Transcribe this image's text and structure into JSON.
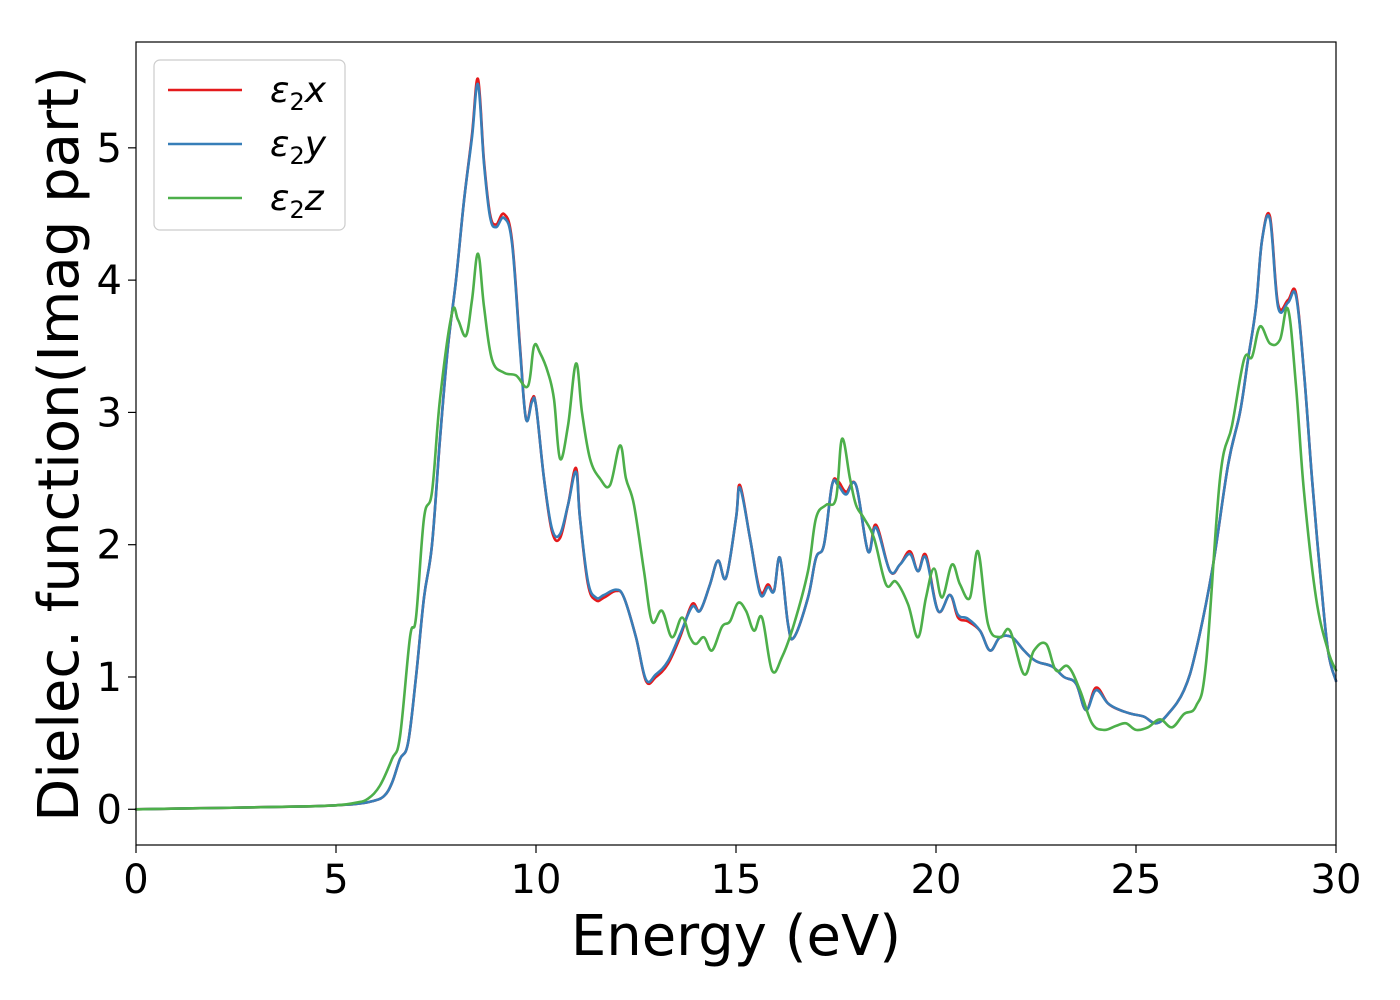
{
  "chart_data": {
    "type": "line",
    "title": "",
    "xlabel": "Energy (eV)",
    "ylabel": "Dielec. function(Imag part)",
    "xlim": [
      0,
      30
    ],
    "ylim": [
      -0.27,
      5.8
    ],
    "xticks": [
      0,
      5,
      10,
      15,
      20,
      25,
      30
    ],
    "yticks": [
      0,
      1,
      2,
      3,
      4,
      5
    ],
    "grid": false,
    "legend_position": "top-left",
    "series": [
      {
        "name": "ε2x",
        "legend": {
          "base": "ε",
          "sub": "2",
          "suffix": "x"
        },
        "color": "#e41a1c",
        "x": [
          0,
          2,
          4,
          5,
          5.5,
          5.9,
          6.2,
          6.4,
          6.6,
          6.8,
          7.0,
          7.2,
          7.4,
          7.6,
          7.8,
          8.0,
          8.2,
          8.4,
          8.55,
          8.7,
          8.85,
          9.0,
          9.2,
          9.4,
          9.6,
          9.75,
          9.9,
          10.0,
          10.2,
          10.4,
          10.6,
          10.8,
          11.0,
          11.1,
          11.3,
          11.5,
          11.7,
          12.0,
          12.2,
          12.5,
          12.75,
          13.0,
          13.3,
          13.6,
          13.9,
          14.1,
          14.35,
          14.55,
          14.75,
          15.0,
          15.1,
          15.35,
          15.6,
          15.8,
          15.95,
          16.1,
          16.3,
          16.45,
          16.8,
          17.0,
          17.2,
          17.4,
          17.55,
          17.75,
          18.0,
          18.3,
          18.5,
          18.85,
          19.1,
          19.35,
          19.55,
          19.75,
          20.05,
          20.35,
          20.55,
          20.8,
          21.1,
          21.35,
          21.6,
          21.9,
          22.2,
          22.5,
          22.9,
          23.2,
          23.5,
          23.75,
          24.0,
          24.3,
          24.6,
          24.9,
          25.2,
          25.5,
          25.8,
          26.2,
          26.5,
          26.9,
          27.3,
          27.6,
          27.8,
          28.0,
          28.15,
          28.35,
          28.55,
          28.8,
          29.0,
          29.2,
          29.4,
          29.6,
          29.8,
          30.0
        ],
        "y": [
          0.0,
          0.01,
          0.02,
          0.03,
          0.04,
          0.06,
          0.1,
          0.2,
          0.38,
          0.5,
          1.0,
          1.6,
          2.0,
          2.8,
          3.5,
          4.0,
          4.6,
          5.1,
          5.52,
          4.9,
          4.5,
          4.42,
          4.5,
          4.3,
          3.5,
          2.95,
          3.1,
          3.05,
          2.5,
          2.1,
          2.05,
          2.3,
          2.58,
          2.2,
          1.7,
          1.58,
          1.6,
          1.65,
          1.6,
          1.3,
          0.97,
          1.0,
          1.1,
          1.3,
          1.55,
          1.5,
          1.7,
          1.88,
          1.75,
          2.2,
          2.45,
          2.05,
          1.65,
          1.7,
          1.65,
          1.9,
          1.4,
          1.3,
          1.6,
          1.9,
          2.0,
          2.45,
          2.48,
          2.4,
          2.45,
          1.95,
          2.15,
          1.8,
          1.85,
          1.95,
          1.8,
          1.92,
          1.5,
          1.62,
          1.45,
          1.42,
          1.35,
          1.2,
          1.3,
          1.3,
          1.2,
          1.12,
          1.08,
          1.0,
          0.95,
          0.75,
          0.92,
          0.8,
          0.75,
          0.72,
          0.7,
          0.65,
          0.72,
          0.9,
          1.2,
          1.8,
          2.6,
          3.0,
          3.4,
          3.8,
          4.3,
          4.48,
          3.82,
          3.85,
          3.9,
          3.3,
          2.5,
          1.8,
          1.2,
          0.97
        ]
      },
      {
        "name": "ε2y",
        "legend": {
          "base": "ε",
          "sub": "2",
          "suffix": "y"
        },
        "color": "#377eb8",
        "x": [
          0,
          2,
          4,
          5,
          5.5,
          5.9,
          6.2,
          6.4,
          6.6,
          6.8,
          7.0,
          7.2,
          7.4,
          7.6,
          7.8,
          8.0,
          8.2,
          8.4,
          8.55,
          8.7,
          8.85,
          9.0,
          9.2,
          9.4,
          9.6,
          9.75,
          9.9,
          10.0,
          10.2,
          10.4,
          10.6,
          10.8,
          11.0,
          11.1,
          11.3,
          11.5,
          11.7,
          12.0,
          12.2,
          12.5,
          12.75,
          13.0,
          13.3,
          13.6,
          13.9,
          14.1,
          14.35,
          14.55,
          14.75,
          15.0,
          15.1,
          15.35,
          15.6,
          15.8,
          15.95,
          16.1,
          16.3,
          16.45,
          16.8,
          17.0,
          17.2,
          17.4,
          17.55,
          17.75,
          18.0,
          18.3,
          18.5,
          18.85,
          19.1,
          19.35,
          19.55,
          19.75,
          20.05,
          20.35,
          20.55,
          20.8,
          21.1,
          21.35,
          21.6,
          21.9,
          22.2,
          22.5,
          22.9,
          23.2,
          23.5,
          23.75,
          24.0,
          24.3,
          24.6,
          24.9,
          25.2,
          25.5,
          25.8,
          26.2,
          26.5,
          26.9,
          27.3,
          27.6,
          27.8,
          28.0,
          28.15,
          28.35,
          28.55,
          28.8,
          29.0,
          29.2,
          29.4,
          29.6,
          29.8,
          30.0
        ],
        "y": [
          0.0,
          0.01,
          0.02,
          0.03,
          0.04,
          0.06,
          0.1,
          0.2,
          0.38,
          0.5,
          1.0,
          1.6,
          2.0,
          2.8,
          3.5,
          4.0,
          4.6,
          5.08,
          5.48,
          4.88,
          4.48,
          4.4,
          4.47,
          4.28,
          3.48,
          2.95,
          3.08,
          3.05,
          2.5,
          2.12,
          2.08,
          2.3,
          2.55,
          2.2,
          1.72,
          1.6,
          1.62,
          1.66,
          1.6,
          1.3,
          0.98,
          1.02,
          1.12,
          1.32,
          1.53,
          1.5,
          1.7,
          1.88,
          1.75,
          2.2,
          2.43,
          2.05,
          1.63,
          1.68,
          1.65,
          1.9,
          1.4,
          1.3,
          1.6,
          1.9,
          2.0,
          2.45,
          2.45,
          2.38,
          2.45,
          1.95,
          2.13,
          1.8,
          1.85,
          1.93,
          1.8,
          1.9,
          1.5,
          1.62,
          1.47,
          1.44,
          1.35,
          1.2,
          1.3,
          1.3,
          1.2,
          1.12,
          1.08,
          1.0,
          0.95,
          0.75,
          0.9,
          0.8,
          0.75,
          0.72,
          0.7,
          0.65,
          0.72,
          0.9,
          1.2,
          1.8,
          2.6,
          3.0,
          3.4,
          3.8,
          4.3,
          4.46,
          3.8,
          3.83,
          3.88,
          3.3,
          2.5,
          1.8,
          1.2,
          0.97
        ]
      },
      {
        "name": "ε2z",
        "legend": {
          "base": "ε",
          "sub": "2",
          "suffix": "z"
        },
        "color": "#4daf4a",
        "x": [
          0,
          2,
          4,
          5,
          5.5,
          5.8,
          6.1,
          6.4,
          6.6,
          6.85,
          7.0,
          7.2,
          7.4,
          7.6,
          7.9,
          8.05,
          8.25,
          8.4,
          8.55,
          8.7,
          8.9,
          9.2,
          9.5,
          9.8,
          9.95,
          10.1,
          10.3,
          10.45,
          10.6,
          10.8,
          11.0,
          11.15,
          11.35,
          11.6,
          11.85,
          12.1,
          12.25,
          12.45,
          12.7,
          12.9,
          13.15,
          13.4,
          13.65,
          13.85,
          14.0,
          14.2,
          14.4,
          14.65,
          14.85,
          15.05,
          15.25,
          15.45,
          15.65,
          15.9,
          16.15,
          16.45,
          16.8,
          17.0,
          17.25,
          17.5,
          17.65,
          17.85,
          18.0,
          18.2,
          18.45,
          18.75,
          19.0,
          19.3,
          19.55,
          19.75,
          19.95,
          20.15,
          20.4,
          20.6,
          20.85,
          21.05,
          21.3,
          21.6,
          21.85,
          22.2,
          22.45,
          22.75,
          23.0,
          23.3,
          23.6,
          23.9,
          24.2,
          24.5,
          24.75,
          25.0,
          25.3,
          25.6,
          25.9,
          26.2,
          26.5,
          26.75,
          27.1,
          27.4,
          27.7,
          27.9,
          28.1,
          28.35,
          28.6,
          28.8,
          29.0,
          29.2,
          29.5,
          29.8,
          30.0
        ],
        "y": [
          0.0,
          0.01,
          0.02,
          0.03,
          0.05,
          0.08,
          0.18,
          0.38,
          0.55,
          1.3,
          1.45,
          2.2,
          2.4,
          3.1,
          3.75,
          3.7,
          3.58,
          3.85,
          4.2,
          3.8,
          3.4,
          3.3,
          3.28,
          3.2,
          3.5,
          3.45,
          3.3,
          3.1,
          2.65,
          2.9,
          3.37,
          3.0,
          2.65,
          2.5,
          2.45,
          2.75,
          2.5,
          2.3,
          1.8,
          1.42,
          1.5,
          1.3,
          1.45,
          1.3,
          1.25,
          1.3,
          1.2,
          1.38,
          1.42,
          1.56,
          1.5,
          1.35,
          1.45,
          1.05,
          1.15,
          1.4,
          1.8,
          2.2,
          2.3,
          2.35,
          2.8,
          2.5,
          2.3,
          2.2,
          2.05,
          1.7,
          1.72,
          1.55,
          1.3,
          1.6,
          1.82,
          1.6,
          1.85,
          1.7,
          1.6,
          1.95,
          1.4,
          1.3,
          1.35,
          1.02,
          1.2,
          1.25,
          1.05,
          1.08,
          0.9,
          0.65,
          0.6,
          0.63,
          0.65,
          0.6,
          0.62,
          0.68,
          0.62,
          0.72,
          0.78,
          1.1,
          2.5,
          2.9,
          3.4,
          3.42,
          3.65,
          3.52,
          3.55,
          3.78,
          3.2,
          2.4,
          1.6,
          1.2,
          1.05
        ]
      }
    ]
  }
}
